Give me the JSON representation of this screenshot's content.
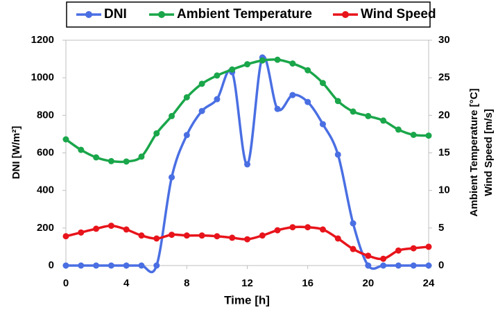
{
  "chart_data": {
    "type": "line",
    "xlabel": "Time [h]",
    "ylabel": "DNI [W/m²]",
    "y2label": [
      "Ambient Temperature [°C]",
      "Wind Speed [m/s]"
    ],
    "x": [
      0,
      1,
      2,
      3,
      4,
      5,
      6,
      7,
      8,
      9,
      10,
      11,
      12,
      13,
      14,
      15,
      16,
      17,
      18,
      19,
      20,
      21,
      22,
      23,
      24
    ],
    "xlim": [
      0,
      24
    ],
    "xticks": [
      0,
      4,
      8,
      12,
      16,
      20,
      24
    ],
    "ylim": [
      0,
      1200
    ],
    "yticks": [
      0,
      200,
      400,
      600,
      800,
      1000,
      1200
    ],
    "y2lim": [
      0,
      30
    ],
    "y2ticks": [
      0,
      5,
      10,
      15,
      20,
      25,
      30
    ],
    "legend": "top",
    "series": [
      {
        "name": "DNI",
        "color": "#4a6fe3",
        "values": [
          0,
          0,
          0,
          0,
          0,
          0,
          0,
          470,
          695,
          823,
          886,
          1030,
          539,
          1108,
          834,
          908,
          871,
          753,
          591,
          225,
          0,
          0,
          0,
          0,
          0
        ]
      },
      {
        "name": "Ambient Temperature",
        "color": "#1aa64a",
        "axis": "y2",
        "values": [
          16.8,
          15.4,
          14.4,
          13.9,
          13.85,
          14.5,
          17.6,
          19.9,
          22.4,
          24.2,
          25.3,
          26.1,
          26.8,
          27.3,
          27.4,
          26.9,
          26.0,
          24.3,
          21.9,
          20.5,
          19.9,
          19.3,
          18.1,
          17.4,
          17.3
        ]
      },
      {
        "name": "Wind Speed",
        "color": "#e8141b",
        "axis": "y2",
        "values": [
          3.9,
          4.4,
          4.9,
          5.3,
          4.8,
          4.0,
          3.6,
          4.1,
          4.0,
          4.0,
          3.9,
          3.7,
          3.5,
          4.0,
          4.7,
          5.1,
          5.1,
          4.8,
          3.6,
          2.2,
          1.3,
          0.9,
          2.0,
          2.3,
          2.5
        ]
      }
    ]
  }
}
